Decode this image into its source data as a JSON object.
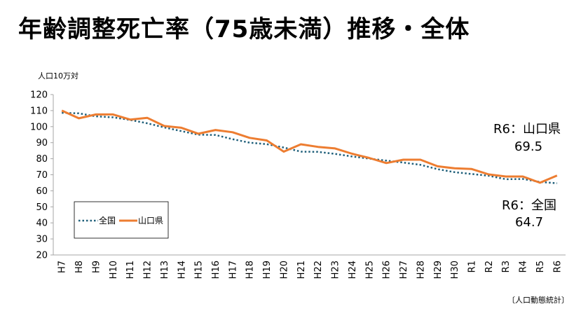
{
  "title": "年齢調整死亡率（75歳未満）推移・全体",
  "chart_data": {
    "type": "line",
    "ylabel": "人口10万対",
    "ylim": [
      20,
      120
    ],
    "ytick_step": 10,
    "grid": false,
    "legend_placement": "bottom-left",
    "categories": [
      "H7",
      "H8",
      "H9",
      "H10",
      "H11",
      "H12",
      "H13",
      "H14",
      "H15",
      "H16",
      "H17",
      "H18",
      "H19",
      "H20",
      "H21",
      "H22",
      "H23",
      "H24",
      "H25",
      "H26",
      "H27",
      "H28",
      "H29",
      "H30",
      "R1",
      "R2",
      "R3",
      "R4",
      "R5",
      "R6"
    ],
    "series": [
      {
        "name": "全国",
        "color": "#1f5f7a",
        "style": "dotted",
        "values": [
          108.6,
          108.3,
          106.4,
          105.8,
          104.2,
          102.1,
          99.5,
          97.2,
          95.0,
          94.8,
          92.2,
          90.0,
          89.1,
          87.0,
          84.4,
          84.3,
          83.0,
          81.4,
          80.1,
          78.8,
          77.6,
          76.2,
          73.5,
          71.6,
          70.5,
          69.4,
          67.2,
          67.4,
          65.5,
          64.7
        ]
      },
      {
        "name": "山口県",
        "color": "#ed7d31",
        "style": "solid",
        "values": [
          110.0,
          105.2,
          107.6,
          107.6,
          104.4,
          105.5,
          100.4,
          99.3,
          95.6,
          97.9,
          96.5,
          93.0,
          91.4,
          84.4,
          89.0,
          87.4,
          86.4,
          83.1,
          80.5,
          77.3,
          79.4,
          79.4,
          75.3,
          74.0,
          73.6,
          70.2,
          68.9,
          68.9,
          65.0,
          69.5
        ]
      }
    ],
    "annotations": [
      {
        "label": "R6：山口県",
        "value": "69.5"
      },
      {
        "label": "R6：全国",
        "value": "64.7"
      }
    ],
    "source": "〔人口動態統計〕"
  }
}
